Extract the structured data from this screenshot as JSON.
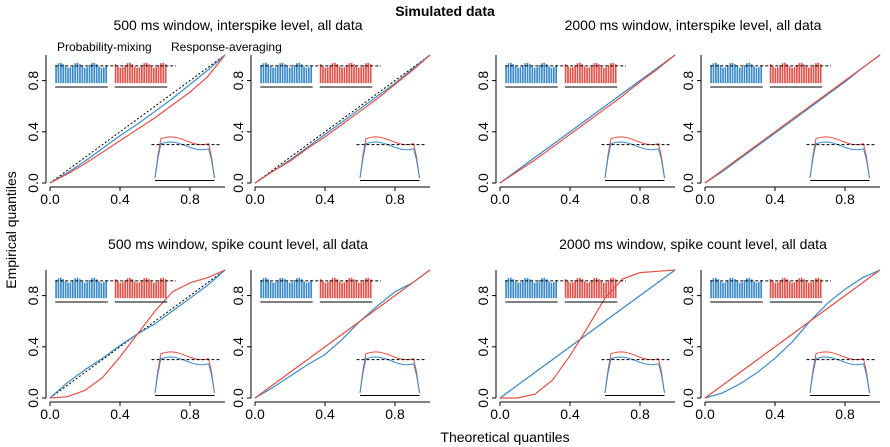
{
  "figure": {
    "title": "Simulated data",
    "xlabel": "Theoretical quantiles",
    "ylabel": "Empirical quantiles",
    "legend": {
      "position": "top-left",
      "entries": [
        "Probability-mixing",
        "Response-averaging"
      ]
    },
    "colors": {
      "blue": "#3b8bc9",
      "red": "#e0524a",
      "reference": "#000000"
    },
    "group_titles": [
      "500 ms window, interspike level, all data",
      "2000 ms window, interspike level, all data",
      "500 ms window, spike count level, all data",
      "2000 ms window, spike count level, all data"
    ]
  },
  "chart_data": [
    {
      "type": "line",
      "title": "500 ms window, interspike level, all data",
      "xlim": [
        0,
        1
      ],
      "ylim": [
        0,
        1
      ],
      "xticks": [
        "0.0",
        "0.4",
        "0.8"
      ],
      "yticks": [
        "0.0",
        "0.4",
        "0.8"
      ],
      "series": [
        {
          "name": "Probability-mixing",
          "x": [
            0,
            0.1,
            0.2,
            0.3,
            0.4,
            0.5,
            0.6,
            0.7,
            0.8,
            0.9,
            1
          ],
          "values": [
            0,
            0.08,
            0.17,
            0.27,
            0.37,
            0.46,
            0.56,
            0.66,
            0.77,
            0.88,
            1
          ]
        },
        {
          "name": "Response-averaging",
          "x": [
            0,
            0.1,
            0.2,
            0.3,
            0.4,
            0.5,
            0.6,
            0.7,
            0.8,
            0.9,
            1
          ],
          "values": [
            0,
            0.07,
            0.15,
            0.24,
            0.33,
            0.42,
            0.51,
            0.61,
            0.71,
            0.83,
            1
          ]
        }
      ]
    },
    {
      "type": "line",
      "xlim": [
        0,
        1
      ],
      "ylim": [
        0,
        1
      ],
      "xticks": [
        "0.0",
        "0.4",
        "0.8"
      ],
      "yticks": [
        "0.0",
        "0.4",
        "0.8"
      ],
      "series": [
        {
          "name": "Probability-mixing",
          "x": [
            0,
            0.1,
            0.2,
            0.3,
            0.4,
            0.5,
            0.6,
            0.7,
            0.8,
            0.9,
            1
          ],
          "values": [
            0,
            0.09,
            0.18,
            0.28,
            0.38,
            0.48,
            0.58,
            0.68,
            0.78,
            0.89,
            1
          ]
        },
        {
          "name": "Response-averaging",
          "x": [
            0,
            0.1,
            0.2,
            0.3,
            0.4,
            0.5,
            0.6,
            0.7,
            0.8,
            0.9,
            1
          ],
          "values": [
            0,
            0.09,
            0.17,
            0.27,
            0.36,
            0.46,
            0.56,
            0.66,
            0.77,
            0.88,
            1
          ]
        }
      ]
    },
    {
      "type": "line",
      "title": "2000 ms window, interspike level, all data",
      "xlim": [
        0,
        1
      ],
      "ylim": [
        0,
        1
      ],
      "xticks": [
        "0.0",
        "0.4",
        "0.8"
      ],
      "yticks": [
        "0.0",
        "0.4",
        "0.8"
      ],
      "series": [
        {
          "name": "Probability-mixing",
          "x": [
            0,
            0.1,
            0.2,
            0.3,
            0.4,
            0.5,
            0.6,
            0.7,
            0.8,
            0.9,
            1
          ],
          "values": [
            0,
            0.1,
            0.2,
            0.3,
            0.4,
            0.5,
            0.6,
            0.7,
            0.8,
            0.9,
            1
          ]
        },
        {
          "name": "Response-averaging",
          "x": [
            0,
            0.1,
            0.2,
            0.3,
            0.4,
            0.5,
            0.6,
            0.7,
            0.8,
            0.9,
            1
          ],
          "values": [
            0,
            0.09,
            0.18,
            0.28,
            0.38,
            0.48,
            0.58,
            0.68,
            0.79,
            0.89,
            1
          ]
        }
      ]
    },
    {
      "type": "line",
      "xlim": [
        0,
        1
      ],
      "ylim": [
        0,
        1
      ],
      "xticks": [
        "0.0",
        "0.4",
        "0.8"
      ],
      "yticks": [
        "0.0",
        "0.4",
        "0.8"
      ],
      "series": [
        {
          "name": "Probability-mixing",
          "x": [
            0,
            0.1,
            0.2,
            0.3,
            0.4,
            0.5,
            0.6,
            0.7,
            0.8,
            0.9,
            1
          ],
          "values": [
            0,
            0.09,
            0.19,
            0.29,
            0.39,
            0.49,
            0.59,
            0.69,
            0.79,
            0.9,
            1
          ]
        },
        {
          "name": "Response-averaging",
          "x": [
            0,
            0.1,
            0.2,
            0.3,
            0.4,
            0.5,
            0.6,
            0.7,
            0.8,
            0.9,
            1
          ],
          "values": [
            0,
            0.1,
            0.2,
            0.3,
            0.4,
            0.5,
            0.6,
            0.7,
            0.8,
            0.9,
            1
          ]
        }
      ]
    },
    {
      "type": "line",
      "title": "500 ms window, spike count level, all data",
      "xlim": [
        0,
        1
      ],
      "ylim": [
        0,
        1
      ],
      "xticks": [
        "0.0",
        "0.4",
        "0.8"
      ],
      "yticks": [
        "0.0",
        "0.4",
        "0.8"
      ],
      "series": [
        {
          "name": "Probability-mixing",
          "x": [
            0,
            0.1,
            0.2,
            0.3,
            0.4,
            0.5,
            0.6,
            0.7,
            0.8,
            0.9,
            1
          ],
          "values": [
            0,
            0.12,
            0.22,
            0.31,
            0.41,
            0.5,
            0.58,
            0.68,
            0.78,
            0.88,
            1
          ]
        },
        {
          "name": "Response-averaging",
          "x": [
            0,
            0.1,
            0.2,
            0.3,
            0.4,
            0.5,
            0.6,
            0.7,
            0.8,
            0.9,
            1
          ],
          "values": [
            0,
            0.01,
            0.06,
            0.16,
            0.32,
            0.5,
            0.68,
            0.83,
            0.9,
            0.94,
            1
          ]
        }
      ]
    },
    {
      "type": "line",
      "xlim": [
        0,
        1
      ],
      "ylim": [
        0,
        1
      ],
      "xticks": [
        "0.0",
        "0.4",
        "0.8"
      ],
      "yticks": [
        "0.0",
        "0.4",
        "0.8"
      ],
      "series": [
        {
          "name": "Probability-mixing",
          "x": [
            0,
            0.1,
            0.2,
            0.3,
            0.4,
            0.5,
            0.6,
            0.7,
            0.8,
            0.9,
            1
          ],
          "values": [
            0,
            0.08,
            0.17,
            0.26,
            0.34,
            0.46,
            0.6,
            0.72,
            0.83,
            0.9,
            1
          ]
        },
        {
          "name": "Response-averaging",
          "x": [
            0,
            0.1,
            0.2,
            0.3,
            0.4,
            0.5,
            0.6,
            0.7,
            0.8,
            0.9,
            1
          ],
          "values": [
            0,
            0.1,
            0.2,
            0.3,
            0.4,
            0.5,
            0.6,
            0.7,
            0.8,
            0.9,
            1
          ]
        }
      ]
    },
    {
      "type": "line",
      "title": "2000 ms window, spike count level, all data",
      "xlim": [
        0,
        1
      ],
      "ylim": [
        0,
        1
      ],
      "xticks": [
        "0.0",
        "0.4",
        "0.8"
      ],
      "yticks": [
        "0.0",
        "0.4",
        "0.8"
      ],
      "series": [
        {
          "name": "Probability-mixing",
          "x": [
            0,
            0.1,
            0.2,
            0.3,
            0.4,
            0.5,
            0.6,
            0.7,
            0.8,
            0.9,
            1
          ],
          "values": [
            0,
            0.1,
            0.2,
            0.3,
            0.4,
            0.5,
            0.6,
            0.7,
            0.8,
            0.9,
            1
          ]
        },
        {
          "name": "Response-averaging",
          "x": [
            0,
            0.1,
            0.2,
            0.3,
            0.4,
            0.5,
            0.6,
            0.7,
            0.8,
            0.9,
            1
          ],
          "values": [
            0,
            0,
            0.03,
            0.14,
            0.33,
            0.55,
            0.78,
            0.93,
            0.98,
            0.99,
            1
          ]
        }
      ]
    },
    {
      "type": "line",
      "xlim": [
        0,
        1
      ],
      "ylim": [
        0,
        1
      ],
      "xticks": [
        "0.0",
        "0.4",
        "0.8"
      ],
      "yticks": [
        "0.0",
        "0.4",
        "0.8"
      ],
      "series": [
        {
          "name": "Probability-mixing",
          "x": [
            0,
            0.1,
            0.2,
            0.3,
            0.4,
            0.5,
            0.6,
            0.7,
            0.8,
            0.9,
            1
          ],
          "values": [
            0,
            0.04,
            0.11,
            0.2,
            0.31,
            0.44,
            0.6,
            0.74,
            0.85,
            0.94,
            1
          ]
        },
        {
          "name": "Response-averaging",
          "x": [
            0,
            0.1,
            0.2,
            0.3,
            0.4,
            0.5,
            0.6,
            0.7,
            0.8,
            0.9,
            1
          ],
          "values": [
            0,
            0.1,
            0.2,
            0.3,
            0.4,
            0.5,
            0.6,
            0.7,
            0.8,
            0.9,
            1
          ]
        }
      ]
    }
  ]
}
